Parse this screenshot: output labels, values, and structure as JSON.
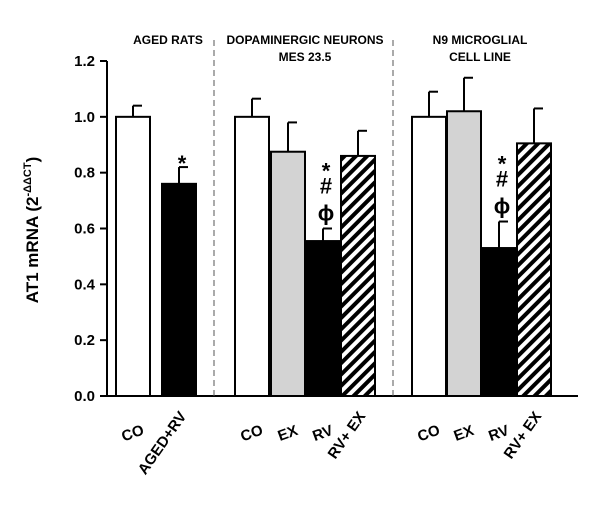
{
  "chart_data": {
    "type": "bar",
    "ylabel": "AT1 mRNA (2",
    "ylabel_sup": "-ΔΔCT",
    "ylabel_close": ")",
    "ylim": [
      0,
      1.2
    ],
    "yticks": [
      "0.0",
      "0.2",
      "0.4",
      "0.6",
      "0.8",
      "1.0",
      "1.2"
    ],
    "panels": [
      {
        "title_lines": [
          "AGED RATS"
        ],
        "bars": [
          {
            "category": "CO",
            "value": 1.0,
            "error": 0.04,
            "fill": "white",
            "annotation": []
          },
          {
            "category": "AGED+RV",
            "value": 0.76,
            "error": 0.06,
            "fill": "black",
            "annotation": [
              "*"
            ]
          }
        ]
      },
      {
        "title_lines": [
          "DOPAMINERGIC NEURONS",
          "MES 23.5"
        ],
        "bars": [
          {
            "category": "CO",
            "value": 1.0,
            "error": 0.065,
            "fill": "white",
            "annotation": []
          },
          {
            "category": "EX",
            "value": 0.875,
            "error": 0.105,
            "fill": "gray",
            "annotation": []
          },
          {
            "category": "RV",
            "value": 0.555,
            "error": 0.045,
            "fill": "black",
            "annotation": [
              "*",
              "#",
              "ϕ"
            ]
          },
          {
            "category": "RV+ EX",
            "value": 0.86,
            "error": 0.09,
            "fill": "hatch",
            "annotation": []
          }
        ]
      },
      {
        "title_lines": [
          "N9 MICROGLIAL",
          "CELL LINE"
        ],
        "bars": [
          {
            "category": "CO",
            "value": 1.0,
            "error": 0.09,
            "fill": "white",
            "annotation": []
          },
          {
            "category": "EX",
            "value": 1.02,
            "error": 0.12,
            "fill": "gray",
            "annotation": []
          },
          {
            "category": "RV",
            "value": 0.53,
            "error": 0.095,
            "fill": "black",
            "annotation": [
              "*",
              "#",
              "ϕ"
            ]
          },
          {
            "category": "RV+ EX",
            "value": 0.905,
            "error": 0.125,
            "fill": "hatch",
            "annotation": []
          }
        ]
      }
    ]
  }
}
